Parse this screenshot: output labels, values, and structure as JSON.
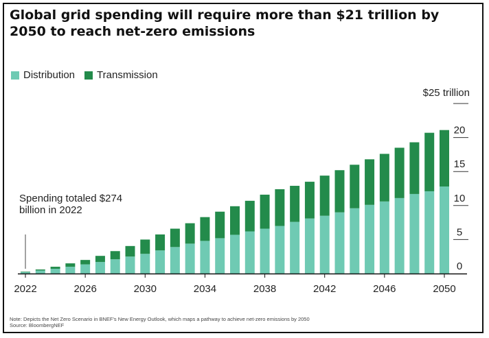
{
  "title": "Global grid spending will require more than $21 trillion by 2050 to reach net-zero emissions",
  "unit_label": "$25 trillion",
  "annotation": "Spending totaled $274 billion in 2022",
  "footnote": {
    "note": "Note: Depicts the Net Zero Scenario in BNEF's New Energy Outlook, which maps a pathway to achieve net-zero emissions by 2050",
    "source": "Source: BloombergNEF"
  },
  "colors": {
    "distribution": "#6fcab3",
    "transmission": "#238b4b"
  },
  "chart_data": {
    "type": "bar",
    "stacked": true,
    "title": "Global grid spending will require more than $21 trillion by 2050 to reach net-zero emissions",
    "ylim": [
      0,
      25
    ],
    "y_ticks": [
      0,
      5,
      10,
      15,
      20
    ],
    "x_tick_labels": [
      "2022",
      "2026",
      "2030",
      "2034",
      "2038",
      "2042",
      "2046",
      "2050"
    ],
    "legend": "top-left",
    "categories": [
      2022,
      2023,
      2024,
      2025,
      2026,
      2027,
      2028,
      2029,
      2030,
      2031,
      2032,
      2033,
      2034,
      2035,
      2036,
      2037,
      2038,
      2039,
      2040,
      2041,
      2042,
      2043,
      2044,
      2045,
      2046,
      2047,
      2048,
      2049,
      2050
    ],
    "series": [
      {
        "name": "Distribution",
        "values": [
          0.2,
          0.45,
          0.7,
          1.0,
          1.35,
          1.7,
          2.1,
          2.5,
          2.9,
          3.4,
          3.9,
          4.4,
          4.8,
          5.2,
          5.7,
          6.2,
          6.6,
          7.0,
          7.6,
          8.1,
          8.5,
          9.0,
          9.6,
          10.1,
          10.6,
          11.1,
          11.7,
          12.1,
          12.8
        ]
      },
      {
        "name": "Transmission",
        "values": [
          0.07,
          0.15,
          0.3,
          0.5,
          0.65,
          0.9,
          1.2,
          1.55,
          2.1,
          2.35,
          2.7,
          3.0,
          3.5,
          3.9,
          4.2,
          4.5,
          5.0,
          5.4,
          5.3,
          5.4,
          5.9,
          6.2,
          6.4,
          6.7,
          7.0,
          7.4,
          7.6,
          8.6,
          8.3
        ]
      }
    ]
  }
}
